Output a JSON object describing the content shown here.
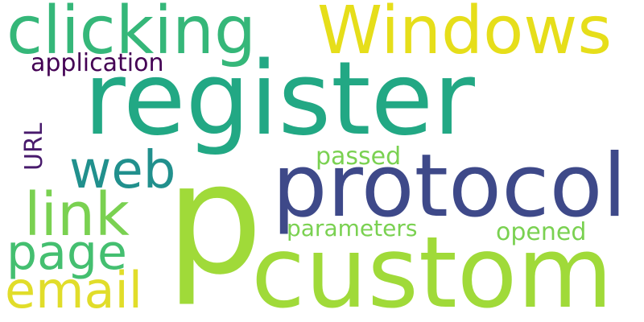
{
  "words": {
    "register": {
      "text": "register",
      "color": "#22a884"
    },
    "custom": {
      "text": "custom",
      "color": "#a0da39"
    },
    "p": {
      "text": "p",
      "color": "#a0da39"
    },
    "protocol": {
      "text": "protocol",
      "color": "#3e4989"
    },
    "windows": {
      "text": "Windows",
      "color": "#e6de1a"
    },
    "clicking": {
      "text": "clicking",
      "color": "#35b779"
    },
    "web": {
      "text": "web",
      "color": "#21908d"
    },
    "link": {
      "text": "link",
      "color": "#7ad151"
    },
    "page": {
      "text": "page",
      "color": "#44bf70"
    },
    "email": {
      "text": "email",
      "color": "#e1dd2a"
    },
    "application": {
      "text": "application",
      "color": "#440154"
    },
    "passed": {
      "text": "passed",
      "color": "#7ad151"
    },
    "parameters": {
      "text": "parameters",
      "color": "#7ad151"
    },
    "opened": {
      "text": "opened",
      "color": "#7ad151"
    },
    "url": {
      "text": "URL",
      "color": "#481a6c"
    }
  }
}
